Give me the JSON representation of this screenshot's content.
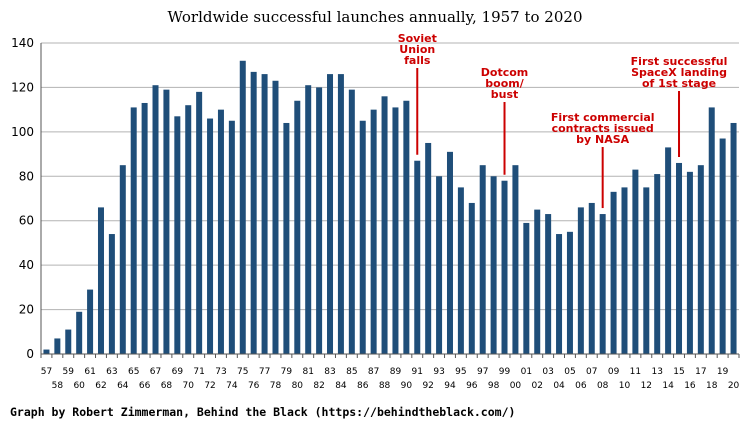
{
  "chart_data": {
    "type": "bar",
    "title": "Worldwide successful launches annually, 1957 to 2020",
    "xlabel": "",
    "ylabel": "",
    "ylim": [
      0,
      140
    ],
    "yticks": [
      0,
      20,
      40,
      60,
      80,
      100,
      120,
      140
    ],
    "grid": true,
    "bar_color": "#1f4e79",
    "annotation_color": "#cc0000",
    "categories": [
      "57",
      "58",
      "59",
      "60",
      "61",
      "62",
      "63",
      "64",
      "65",
      "66",
      "67",
      "68",
      "69",
      "70",
      "71",
      "72",
      "73",
      "74",
      "75",
      "76",
      "77",
      "78",
      "79",
      "80",
      "81",
      "82",
      "83",
      "84",
      "85",
      "86",
      "87",
      "88",
      "89",
      "90",
      "91",
      "92",
      "93",
      "94",
      "95",
      "96",
      "97",
      "98",
      "99",
      "00",
      "01",
      "02",
      "03",
      "04",
      "05",
      "06",
      "07",
      "08",
      "09",
      "10",
      "11",
      "12",
      "13",
      "14",
      "15",
      "16",
      "17",
      "18",
      "19",
      "20"
    ],
    "values": [
      2,
      7,
      11,
      19,
      29,
      66,
      54,
      85,
      111,
      113,
      121,
      119,
      107,
      112,
      118,
      106,
      110,
      105,
      132,
      127,
      126,
      123,
      104,
      114,
      121,
      120,
      126,
      126,
      119,
      105,
      110,
      116,
      111,
      114,
      87,
      95,
      80,
      91,
      75,
      68,
      85,
      80,
      78,
      85,
      59,
      65,
      63,
      54,
      55,
      66,
      68,
      63,
      73,
      75,
      83,
      75,
      81,
      93,
      86,
      82,
      85,
      111,
      97,
      104
    ],
    "annotations": [
      {
        "lines": [
          "Soviet",
          "Union",
          "falls"
        ],
        "category": "91"
      },
      {
        "lines": [
          "Dotcom",
          "boom/",
          "bust"
        ],
        "category": "99"
      },
      {
        "lines": [
          "First commercial",
          "contracts issued",
          "by NASA"
        ],
        "category": "08"
      },
      {
        "lines": [
          "First successful",
          "SpaceX landing",
          "of 1st stage"
        ],
        "category": "15"
      }
    ]
  },
  "credit": "Graph by Robert Zimmerman, Behind the Black (https://behindtheblack.com/)"
}
